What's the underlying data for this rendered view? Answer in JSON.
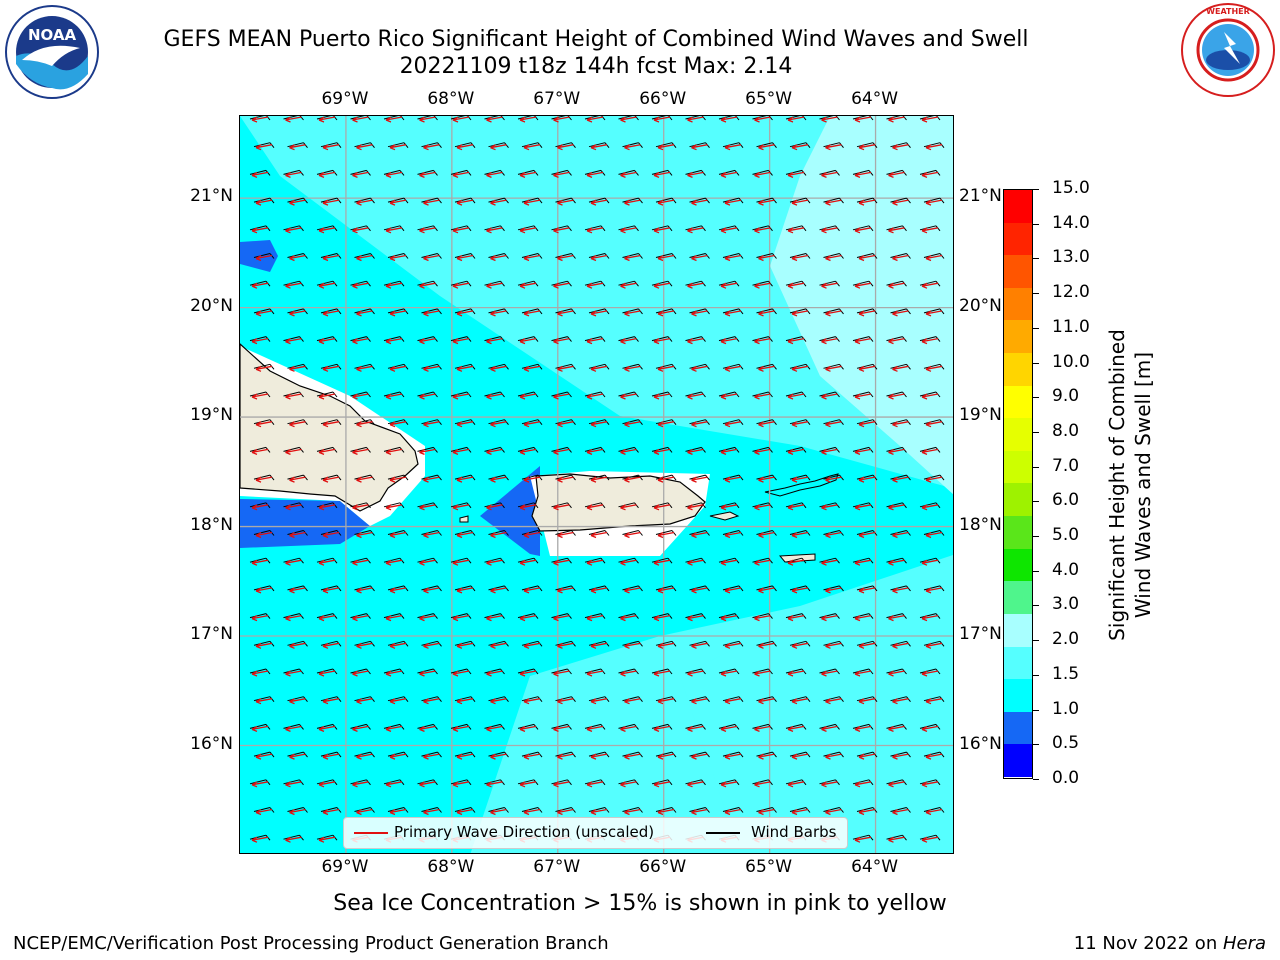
{
  "header": {
    "title_line1": "GEFS MEAN Puerto Rico Significant Height of Combined Wind Waves and Swell",
    "title_line2": "20221109 t18z 144h fcst   Max: 2.14"
  },
  "logos": {
    "left_name": "NOAA",
    "right_name": "NATIONAL WEATHER SERVICE"
  },
  "axes": {
    "lon_labels": [
      "69°W",
      "68°W",
      "67°W",
      "66°W",
      "65°W",
      "64°W"
    ],
    "lat_labels": [
      "21°N",
      "20°N",
      "19°N",
      "18°N",
      "17°N",
      "16°N"
    ],
    "lon_range": [
      -70,
      -63.25
    ],
    "lat_range": [
      15,
      21.75
    ]
  },
  "colorbar": {
    "label": "Significant Height of Combined Wind Waves and Swell [m]",
    "label_line1": "Significant Height of Combined",
    "label_line2": "Wind Waves and Swell [m]",
    "ticks": [
      "15.0",
      "14.0",
      "13.0",
      "12.0",
      "11.0",
      "10.0",
      "9.0",
      "8.0",
      "7.0",
      "6.0",
      "5.0",
      "4.0",
      "3.0",
      "2.0",
      "1.5",
      "1.0",
      "0.5",
      "0.0"
    ],
    "colors": [
      "#ff0000",
      "#ff2400",
      "#ff5500",
      "#ff8000",
      "#ffaa00",
      "#ffd500",
      "#ffff00",
      "#e6ff00",
      "#cdff00",
      "#9ef200",
      "#5ae61a",
      "#0ee600",
      "#4ff58c",
      "#a8ffff",
      "#55ffff",
      "#00ffff",
      "#1568f5",
      "#0000ff"
    ]
  },
  "legend": {
    "wave_label": "Primary Wave Direction (unscaled)",
    "barb_label": "Wind Barbs",
    "wave_color": "#e01010",
    "barb_color": "#000000"
  },
  "note": "Sea Ice Concentration > 15% is shown in pink to yellow",
  "footer": {
    "left": "NCEP/EMC/Verification Post Processing Product Generation Branch",
    "right_prefix": "11 Nov 2022 on ",
    "right_host": "Hera"
  },
  "colors": {
    "land": "#efecdc",
    "sea_low": "#00ffff",
    "sea_mid": "#55ffff",
    "sea_high": "#a8ffff",
    "shallow": "#1568f5"
  }
}
